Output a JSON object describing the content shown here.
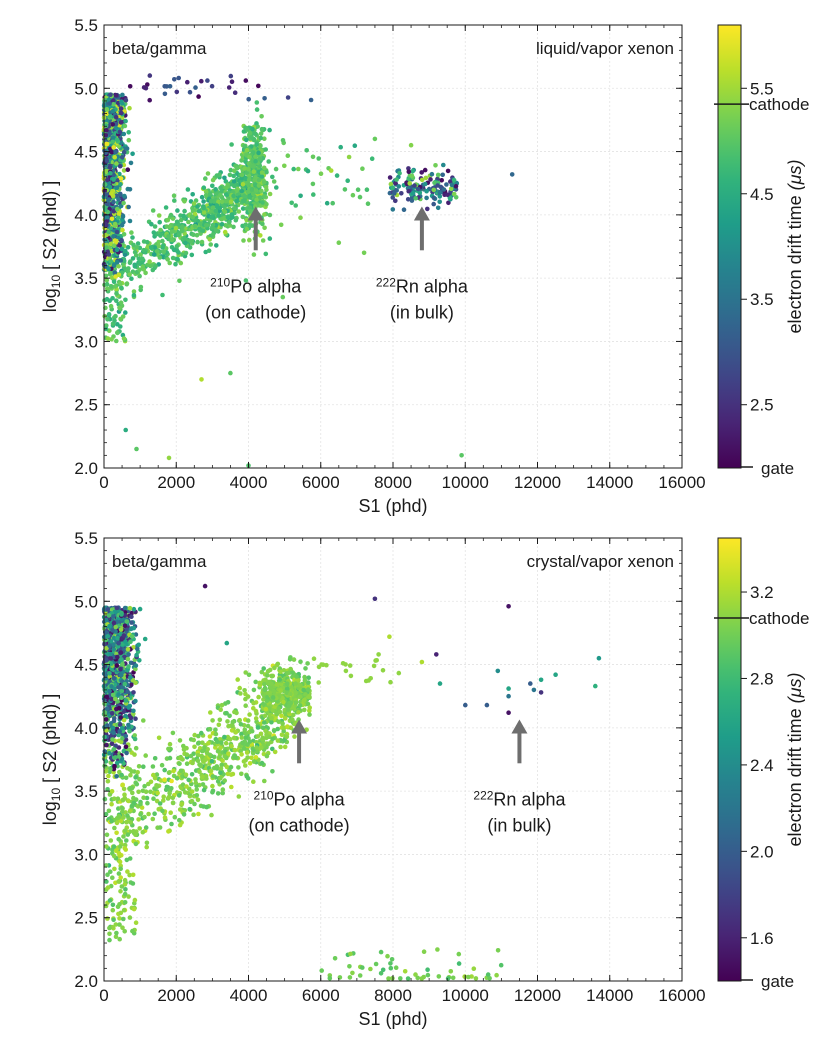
{
  "chart_data": [
    {
      "type": "scatter",
      "panel": "top",
      "xlabel": "S1 (phd)",
      "ylabel_base": "log",
      "ylabel_sub": "10",
      "ylabel_rest": "[ S2 (phd) ]",
      "xlim": [
        0,
        16000
      ],
      "ylim": [
        2.0,
        5.5
      ],
      "xticks": [
        0,
        2000,
        4000,
        6000,
        8000,
        10000,
        12000,
        14000,
        16000
      ],
      "yticks": [
        2.0,
        2.5,
        3.0,
        3.5,
        4.0,
        4.5,
        5.0,
        5.5
      ],
      "grid": true,
      "label_left": "beta/gamma",
      "label_right": "liquid/vapor xenon",
      "colorbar": {
        "label": "electron drift time",
        "label_unit": "(μs)",
        "ticks": [
          2.5,
          3.5,
          4.5,
          5.5
        ],
        "range": [
          1.9,
          6.1
        ],
        "cathode_value": 5.35,
        "cathode_label": "cathode",
        "gate_value": 1.9,
        "gate_label": "gate"
      },
      "annotations": [
        {
          "isotope": "210",
          "text1": "Po alpha",
          "text2": "(on cathode)",
          "arrow_x": 4200,
          "arrow_y_top": 4.05,
          "arrow_y_bottom": 3.72
        },
        {
          "isotope": "222",
          "text1": "Rn alpha",
          "text2": "(in bulk)",
          "arrow_x": 8800,
          "arrow_y_top": 4.05,
          "arrow_y_bottom": 3.72
        }
      ],
      "clusters": [
        {
          "name": "beta-gamma band",
          "s1_range": [
            0,
            1200
          ],
          "log_s2_range": [
            3.2,
            5.0
          ],
          "drift_mix": "mixed 2.0-6.0"
        },
        {
          "name": "210Po alpha band",
          "s1_range": [
            300,
            4800
          ],
          "log_s2_range": [
            3.3,
            4.75
          ],
          "drift": "~5.0"
        },
        {
          "name": "222Rn alpha cluster",
          "s1_range": [
            7800,
            10000
          ],
          "log_s2_range": [
            4.05,
            4.4
          ],
          "drift_mix": "mixed 2.0-5.5"
        }
      ]
    },
    {
      "type": "scatter",
      "panel": "bottom",
      "xlabel": "S1 (phd)",
      "ylabel_base": "log",
      "ylabel_sub": "10",
      "ylabel_rest": "[ S2 (phd) ]",
      "xlim": [
        0,
        16000
      ],
      "ylim": [
        2.0,
        5.5
      ],
      "xticks": [
        0,
        2000,
        4000,
        6000,
        8000,
        10000,
        12000,
        14000,
        16000
      ],
      "yticks": [
        2.0,
        2.5,
        3.0,
        3.5,
        4.0,
        4.5,
        5.0,
        5.5
      ],
      "grid": true,
      "label_left": "beta/gamma",
      "label_right": "crystal/vapor xenon",
      "colorbar": {
        "label": "electron drift time",
        "label_unit": "(μs)",
        "ticks": [
          1.6,
          2.0,
          2.4,
          2.8,
          3.2
        ],
        "range": [
          1.4,
          3.45
        ],
        "cathode_value": 3.08,
        "cathode_label": "cathode",
        "gate_value": 1.4,
        "gate_label": "gate"
      },
      "annotations": [
        {
          "isotope": "210",
          "text1": "Po alpha",
          "text2": "(on cathode)",
          "arrow_x": 5400,
          "arrow_y_top": 4.05,
          "arrow_y_bottom": 3.72
        },
        {
          "isotope": "222",
          "text1": "Rn alpha",
          "text2": "(in bulk)",
          "arrow_x": 11500,
          "arrow_y_top": 4.05,
          "arrow_y_bottom": 3.72
        }
      ],
      "clusters": [
        {
          "name": "beta-gamma band",
          "s1_range": [
            0,
            1700
          ],
          "log_s2_range": [
            3.6,
            5.0
          ],
          "drift_mix": "mixed 1.4-3.2"
        },
        {
          "name": "210Po alpha band",
          "s1_range": [
            300,
            5600
          ],
          "log_s2_range": [
            2.3,
            4.5
          ],
          "drift": "~3.1"
        },
        {
          "name": "222Rn alpha sparse",
          "s1_range": [
            9000,
            13700
          ],
          "log_s2_range": [
            4.1,
            4.6
          ],
          "drift_mix": "mixed 1.5-2.8"
        },
        {
          "name": "low S2 tail",
          "s1_range": [
            6000,
            11000
          ],
          "log_s2_range": [
            2.0,
            2.3
          ],
          "drift": "~3.0"
        }
      ]
    }
  ]
}
